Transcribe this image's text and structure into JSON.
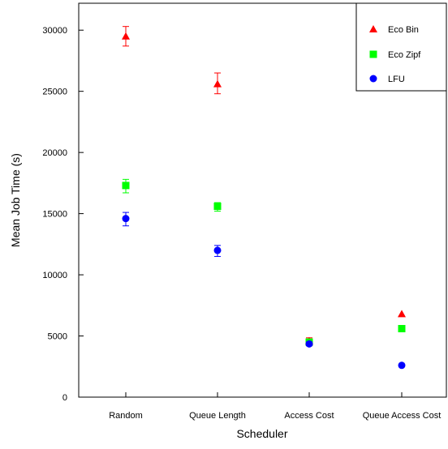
{
  "chart_data": {
    "type": "scatter",
    "title": "",
    "xlabel": "Scheduler",
    "ylabel": "Mean Job Time (s)",
    "categories": [
      "Random",
      "Queue Length",
      "Access Cost",
      "Queue Access Cost"
    ],
    "yticks": [
      0,
      5000,
      10000,
      15000,
      20000,
      25000,
      30000
    ],
    "ylim": [
      0,
      32200
    ],
    "grid": false,
    "legend_position": "top-right",
    "series": [
      {
        "name": "Eco Bin",
        "marker": "triangle",
        "color": "#ff0000",
        "values": [
          29500,
          25600,
          4600,
          6800
        ],
        "errors": [
          [
            28700,
            30300
          ],
          [
            24800,
            26500
          ],
          [
            4300,
            4850
          ],
          null
        ]
      },
      {
        "name": "Eco Zipf",
        "marker": "square",
        "color": "#00ff00",
        "values": [
          17300,
          15600,
          4500,
          5600
        ],
        "errors": [
          [
            16700,
            17800
          ],
          [
            15200,
            15900
          ],
          [
            4200,
            4750
          ],
          null
        ]
      },
      {
        "name": "LFU",
        "marker": "circle",
        "color": "#0000ff",
        "values": [
          14600,
          12000,
          4350,
          2600
        ],
        "errors": [
          [
            14000,
            15100
          ],
          [
            11500,
            12400
          ],
          [
            4200,
            4500
          ],
          null
        ]
      }
    ]
  }
}
